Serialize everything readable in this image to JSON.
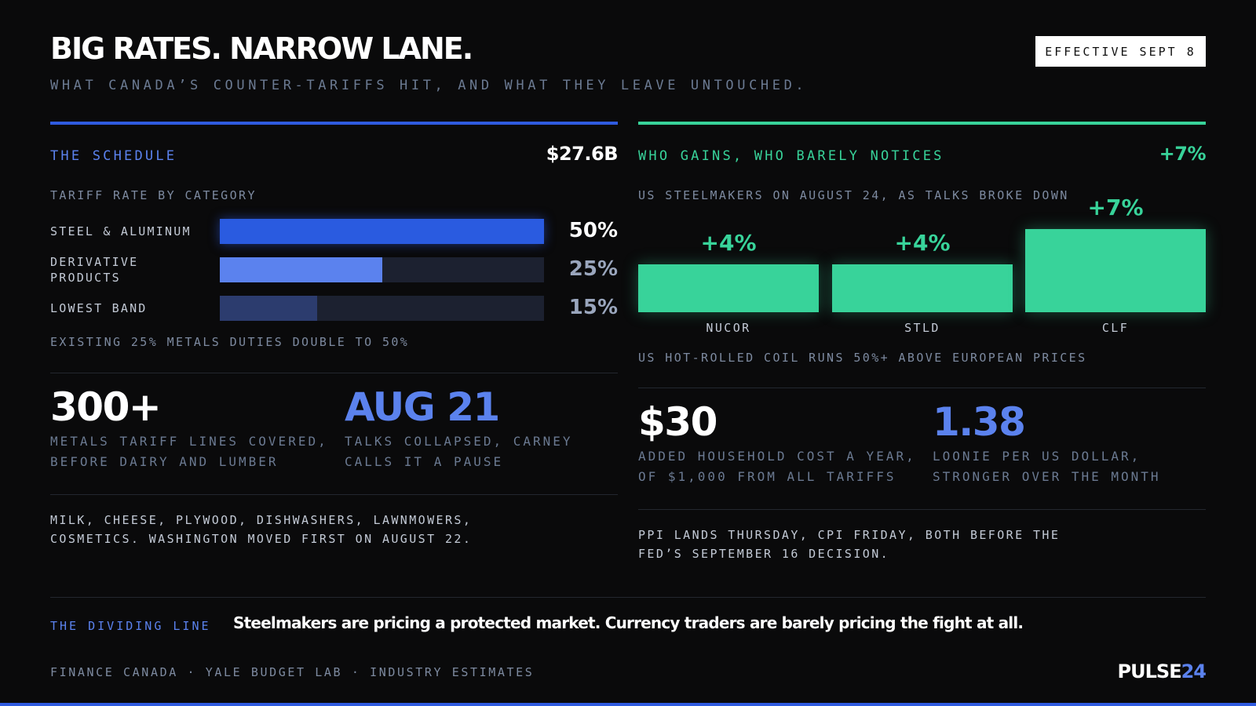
{
  "header": {
    "title": "BIG RATES. NARROW LANE.",
    "subtitle": "WHAT CANADA’S COUNTER-TARIFFS HIT, AND WHAT THEY LEAVE UNTOUCHED.",
    "badge": "EFFECTIVE SEPT 8"
  },
  "colors": {
    "accent_blue": "#2f5be0",
    "accent_green": "#38d39a",
    "background": "#0a0a0b"
  },
  "left": {
    "section_label": "THE SCHEDULE",
    "headline_value": "$27.6B",
    "chart_label": "TARIFF RATE BY CATEGORY",
    "bars": [
      {
        "label": "STEEL & ALUMINUM",
        "value_text": "50%",
        "fill_fraction": 1.0,
        "color": "#2a5be0"
      },
      {
        "label": "DERIVATIVE PRODUCTS",
        "value_text": "25%",
        "fill_fraction": 0.5,
        "color": "#5b82ee"
      },
      {
        "label": "LOWEST BAND",
        "value_text": "15%",
        "fill_fraction": 0.3,
        "color": "#2c3c6e"
      }
    ],
    "chart_note": "EXISTING 25% METALS DUTIES DOUBLE TO 50%",
    "stats": [
      {
        "value": "300+",
        "desc_1": "METALS TARIFF LINES COVERED,",
        "desc_2": "BEFORE DAIRY AND LUMBER"
      },
      {
        "value": "AUG 21",
        "desc_1": "TALKS COLLAPSED, CARNEY",
        "desc_2": "CALLS IT A PAUSE"
      }
    ],
    "note_1": "MILK, CHEESE, PLYWOOD, DISHWASHERS, LAWNMOWERS,",
    "note_2": "COSMETICS. WASHINGTON MOVED FIRST ON AUGUST 22."
  },
  "right": {
    "section_label": "WHO GAINS, WHO BARELY NOTICES",
    "headline_value": "+7%",
    "chart_label": "US STEELMAKERS ON AUGUST 24, AS TALKS BROKE DOWN",
    "chart_note": "US HOT-ROLLED COIL RUNS 50%+ ABOVE EUROPEAN PRICES",
    "stats": [
      {
        "value": "$30",
        "desc_1": "ADDED HOUSEHOLD COST A YEAR,",
        "desc_2": "OF $1,000 FROM ALL TARIFFS"
      },
      {
        "value": "1.38",
        "desc_1": "LOONIE PER US DOLLAR,",
        "desc_2": "STRONGER OVER THE MONTH"
      }
    ],
    "note_1": "PPI LANDS THURSDAY, CPI FRIDAY, BOTH BEFORE THE",
    "note_2": "FED’S SEPTEMBER 16 DECISION."
  },
  "chart_data": [
    {
      "type": "bar",
      "orientation": "horizontal",
      "title": "TARIFF RATE BY CATEGORY",
      "categories": [
        "STEEL & ALUMINUM",
        "DERIVATIVE PRODUCTS",
        "LOWEST BAND"
      ],
      "values": [
        50,
        25,
        15
      ],
      "unit": "%"
    },
    {
      "type": "bar",
      "orientation": "vertical",
      "title": "US STEELMAKERS ON AUGUST 24, AS TALKS BROKE DOWN",
      "categories": [
        "NUCOR",
        "STLD",
        "CLF"
      ],
      "values": [
        4,
        4,
        7
      ],
      "value_labels": [
        "+4%",
        "+4%",
        "+7%"
      ],
      "unit": "%"
    }
  ],
  "footer": {
    "dividing_label": "THE DIVIDING LINE",
    "dividing_text": "Steelmakers are pricing a protected market. Currency traders are barely pricing the fight at all.",
    "sources": "FINANCE CANADA · YALE BUDGET LAB · INDUSTRY ESTIMATES",
    "logo_main": "PULSE",
    "logo_accent": "24"
  }
}
